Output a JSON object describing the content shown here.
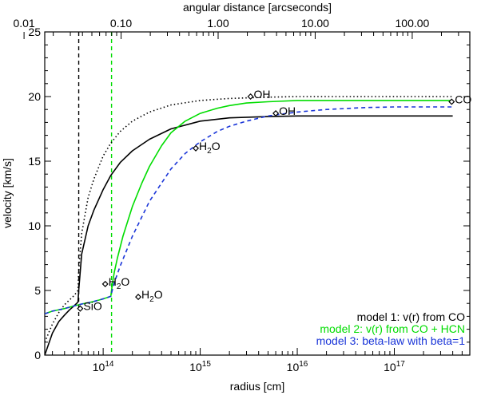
{
  "chart_data": {
    "type": "line",
    "xlabel": "radius [cm]",
    "ylabel": "velocity [km/s]",
    "top_xlabel": "angular distance [arcseconds]",
    "xscale": "log",
    "xlim": [
      25000000000000.0,
      6e+17
    ],
    "ylim": [
      0,
      25
    ],
    "x_ticks": [
      {
        "value": 100000000000000.0,
        "base": "10",
        "exp": "14"
      },
      {
        "value": 1000000000000000.0,
        "base": "10",
        "exp": "15"
      },
      {
        "value": 1e+16,
        "base": "10",
        "exp": "16"
      },
      {
        "value": 1e+17,
        "base": "10",
        "exp": "17"
      }
    ],
    "y_ticks": [
      "0",
      "5",
      "10",
      "15",
      "20",
      "25"
    ],
    "top_ticks": [
      {
        "value": 0.01,
        "label": "0.01"
      },
      {
        "value": 0.1,
        "label": "0.10"
      },
      {
        "value": 1,
        "label": "1.00"
      },
      {
        "value": 10,
        "label": "10.00"
      },
      {
        "value": 100,
        "label": "100.00"
      }
    ],
    "top_axis_cm_per_arcsec": 1530000000000000.0,
    "series": [
      {
        "color": "#000000",
        "dash": "solid",
        "x": [
          25000000000000.0,
          30000000000000.0,
          35000000000000.0,
          40000000000000.0,
          45000000000000.0,
          50000000000000.0,
          55000000000000.0,
          56000000000000.0,
          60000000000000.0,
          70000000000000.0,
          80000000000000.0,
          100000000000000.0,
          120000000000000.0,
          150000000000000.0,
          200000000000000.0,
          300000000000000.0,
          500000000000000.0,
          1000000000000000.0,
          2000000000000000.0,
          5000000000000000.0,
          1e+16,
          3e+16,
          1e+17,
          4e+17
        ],
        "y": [
          0.0,
          1.7,
          2.6,
          3.1,
          3.5,
          3.8,
          4.1,
          5.0,
          7.8,
          10.0,
          11.2,
          12.8,
          13.9,
          14.9,
          15.8,
          16.7,
          17.5,
          18.1,
          18.35,
          18.45,
          18.5,
          18.5,
          18.5,
          18.5
        ]
      },
      {
        "color": "#000000",
        "dash": "dotted",
        "x": [
          25000000000000.0,
          30000000000000.0,
          35000000000000.0,
          40000000000000.0,
          50000000000000.0,
          55000000000000.0,
          56000000000000.0,
          60000000000000.0,
          70000000000000.0,
          80000000000000.0,
          100000000000000.0,
          120000000000000.0,
          150000000000000.0,
          200000000000000.0,
          300000000000000.0,
          500000000000000.0,
          1000000000000000.0,
          2000000000000000.0,
          5000000000000000.0,
          1e+16,
          3e+16,
          1e+17,
          4e+17
        ],
        "y": [
          1.0,
          2.4,
          3.3,
          3.9,
          4.6,
          5.0,
          6.5,
          9.4,
          12.2,
          13.6,
          15.4,
          16.4,
          17.3,
          18.1,
          18.8,
          19.35,
          19.7,
          19.85,
          19.95,
          20.0,
          20.0,
          20.0,
          20.0
        ]
      },
      {
        "color": "#00dd00",
        "dash": "solid",
        "x": [
          25000000000000.0,
          30000000000000.0,
          40000000000000.0,
          50000000000000.0,
          60000000000000.0,
          70000000000000.0,
          80000000000000.0,
          90000000000000.0,
          100000000000000.0,
          110000000000000.0,
          120000000000000.0,
          122000000000000.0,
          125000000000000.0,
          130000000000000.0,
          140000000000000.0,
          160000000000000.0,
          200000000000000.0,
          250000000000000.0,
          300000000000000.0,
          400000000000000.0,
          500000000000000.0,
          700000000000000.0,
          1000000000000000.0,
          1500000000000000.0,
          2000000000000000.0,
          3000000000000000.0,
          5000000000000000.0,
          1e+16,
          3e+16,
          1e+17,
          4e+17
        ],
        "y": [
          3.2,
          3.4,
          3.6,
          3.8,
          3.95,
          4.05,
          4.15,
          4.25,
          4.35,
          4.45,
          4.55,
          5.0,
          5.6,
          6.4,
          7.5,
          9.2,
          11.5,
          13.3,
          14.6,
          16.2,
          17.2,
          18.1,
          18.7,
          19.1,
          19.3,
          19.5,
          19.6,
          19.7,
          19.7,
          19.7,
          19.7
        ]
      },
      {
        "color": "#1a35d8",
        "dash": "dashed",
        "x": [
          25000000000000.0,
          30000000000000.0,
          40000000000000.0,
          50000000000000.0,
          60000000000000.0,
          70000000000000.0,
          80000000000000.0,
          90000000000000.0,
          100000000000000.0,
          110000000000000.0,
          120000000000000.0,
          122000000000000.0,
          130000000000000.0,
          150000000000000.0,
          200000000000000.0,
          300000000000000.0,
          500000000000000.0,
          700000000000000.0,
          1000000000000000.0,
          1500000000000000.0,
          2000000000000000.0,
          3000000000000000.0,
          5000000000000000.0,
          1e+16,
          2e+16,
          5e+16,
          1e+17,
          2e+17,
          4e+17
        ],
        "y": [
          3.2,
          3.4,
          3.6,
          3.8,
          3.95,
          4.05,
          4.15,
          4.25,
          4.35,
          4.45,
          4.55,
          4.8,
          5.6,
          6.9,
          9.2,
          11.9,
          14.4,
          15.6,
          16.5,
          17.3,
          17.7,
          18.1,
          18.5,
          18.8,
          19.0,
          19.15,
          19.2,
          19.2,
          19.2
        ]
      }
    ],
    "vlines": [
      {
        "x": 56000000000000.0,
        "color": "#000000",
        "dash": "dashed"
      },
      {
        "x": 122000000000000.0,
        "color": "#00dd00",
        "dash": "dashed"
      }
    ],
    "markers": [
      {
        "label": "CO",
        "x": 3.9e+17,
        "y": 19.6,
        "sub": ""
      },
      {
        "label": "OH",
        "x": 3300000000000000.0,
        "y": 20.0,
        "sub": ""
      },
      {
        "label": "OH",
        "x": 6000000000000000.0,
        "y": 18.7,
        "sub": ""
      },
      {
        "label": "H",
        "sub": "2",
        "tail": "O",
        "x": 900000000000000.0,
        "y": 16.0
      },
      {
        "label": "H",
        "sub": "2",
        "tail": "O",
        "x": 105000000000000.0,
        "y": 5.5
      },
      {
        "label": "H",
        "sub": "2",
        "tail": "O",
        "x": 230000000000000.0,
        "y": 4.5
      },
      {
        "label": "SiO",
        "x": 58000000000000.0,
        "y": 3.6,
        "sub": ""
      }
    ],
    "legend": {
      "placement": "bottom-right",
      "entries": [
        {
          "text": "model 1: v(r) from CO",
          "color": "#000000"
        },
        {
          "text": "model 2: v(r) from CO + HCN",
          "color": "#00dd00"
        },
        {
          "text": "model 3: beta-law with beta=1",
          "color": "#1a35d8"
        }
      ]
    }
  }
}
